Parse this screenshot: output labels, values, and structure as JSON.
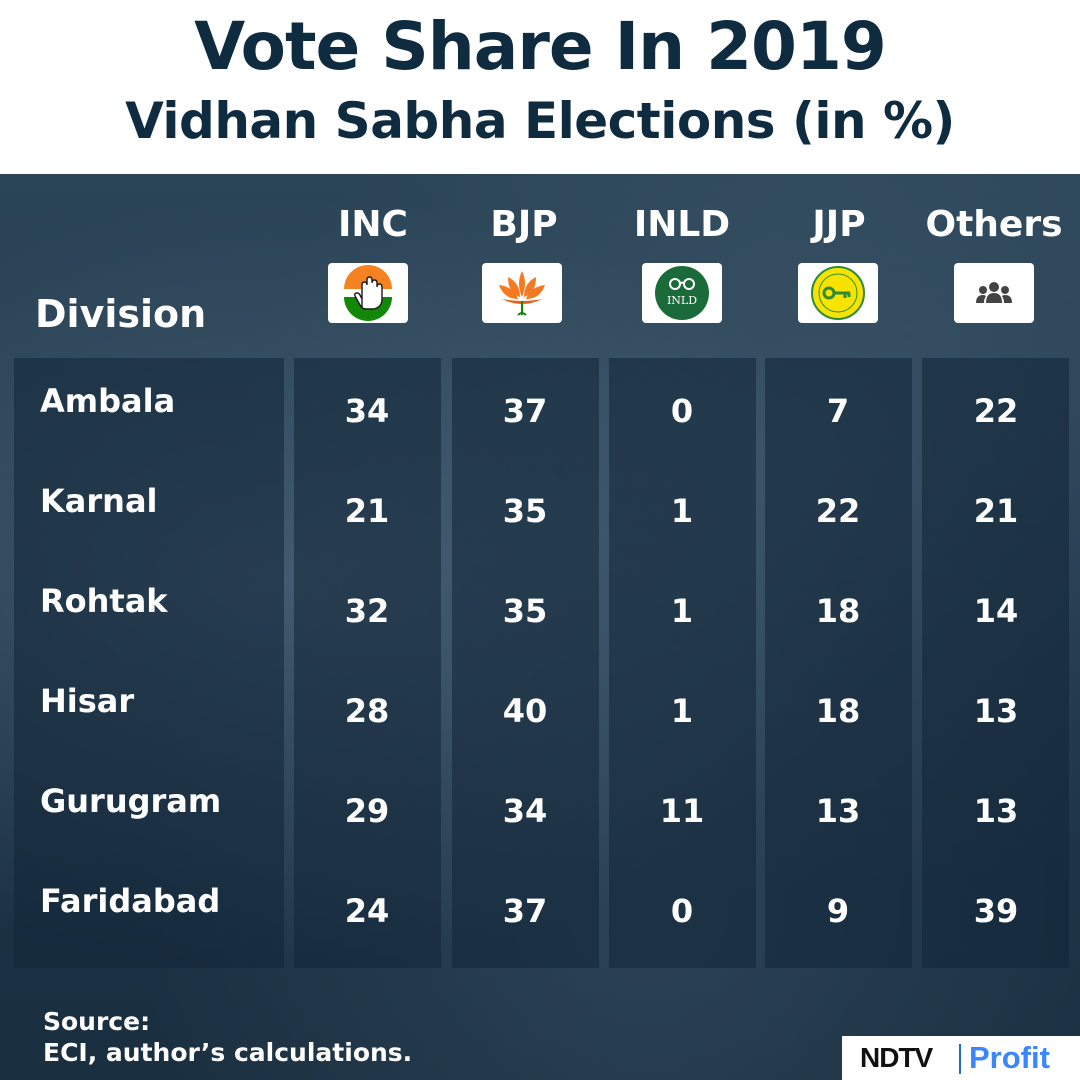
{
  "chart_data": {
    "type": "table",
    "title": "Vote Share In 2019",
    "subtitle": "Vidhan Sabha Elections (in %)",
    "row_header": "Division",
    "columns": [
      {
        "name": "INC",
        "logo": "inc-hand-logo-icon"
      },
      {
        "name": "BJP",
        "logo": "bjp-lotus-logo-icon"
      },
      {
        "name": "INLD",
        "logo": "inld-spectacles-logo-icon"
      },
      {
        "name": "JJP",
        "logo": "jjp-key-logo-icon"
      },
      {
        "name": "Others",
        "logo": "group-people-icon"
      }
    ],
    "rows": [
      {
        "division": "Ambala",
        "values": [
          "34",
          "37",
          "0",
          "7",
          "22"
        ]
      },
      {
        "division": "Karnal",
        "values": [
          "21",
          "35",
          "1",
          "22",
          "21"
        ]
      },
      {
        "division": "Rohtak",
        "values": [
          "32",
          "35",
          "1",
          "18",
          "14"
        ]
      },
      {
        "division": "Hisar",
        "values": [
          "28",
          "40",
          "1",
          "18",
          "13"
        ]
      },
      {
        "division": "Gurugram",
        "values": [
          "29",
          "34",
          "11",
          "13",
          "13"
        ]
      },
      {
        "division": "Faridabad",
        "values": [
          "24",
          "37",
          "0",
          "9",
          "39"
        ]
      }
    ]
  },
  "source": {
    "line1": "Source:",
    "line2": "ECI, author’s calculations."
  },
  "brand": {
    "ndtv": "NDTV",
    "profit": "Profit"
  },
  "logo_text": {
    "inld": "INLD"
  },
  "colors": {
    "heading": "#0e2b40",
    "background": "#1d3446",
    "inc_saffron": "#f58220",
    "inc_green": "#138808",
    "bjp_saffron": "#f47920",
    "inld_green": "#1b6b3a",
    "jjp_yellow": "#f7e300",
    "jjp_green": "#2e8b3a",
    "brand_blue": "#3a86ff"
  }
}
